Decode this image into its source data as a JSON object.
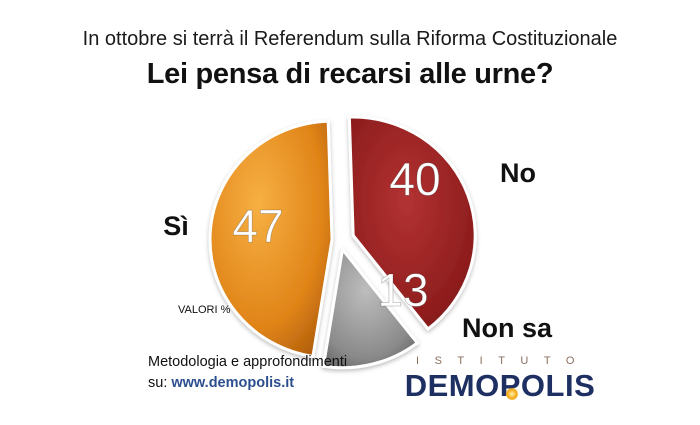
{
  "header": {
    "subtitle": "In ottobre si terrà il Referendum sulla Riforma Costituzionale",
    "title": "Lei pensa di recarsi alle urne?"
  },
  "chart_data": {
    "type": "pie",
    "title": "Lei pensa di recarsi alle urne?",
    "unit_label": "VALORI %",
    "slices": [
      {
        "label": "Sì",
        "value": 47,
        "color": "#e08418"
      },
      {
        "label": "No",
        "value": 40,
        "color": "#8e1d1d"
      },
      {
        "label": "Non sa",
        "value": 13,
        "color": "#8a8a8a"
      }
    ]
  },
  "footer": {
    "note_line1": "Metodologia e approfondimenti",
    "note_prefix": "su: ",
    "note_site": "www.demopolis.it"
  },
  "logo": {
    "top_text": "ISTITUTO",
    "main_text": "DEMOPOLIS"
  }
}
